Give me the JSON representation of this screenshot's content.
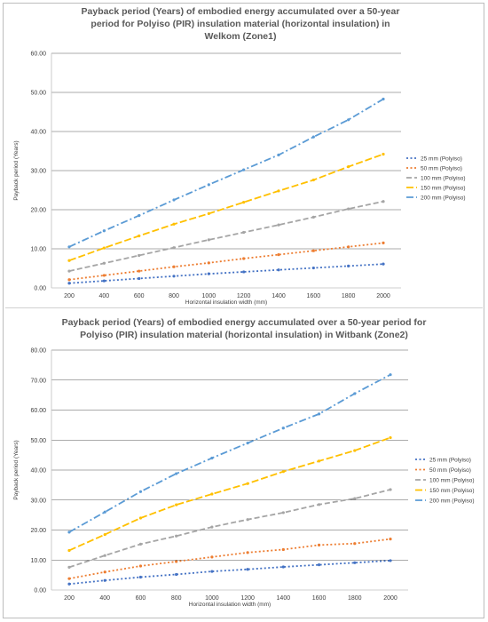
{
  "chart_data": [
    {
      "type": "line",
      "title_lines": [
        "Payback period (Years) of embodied energy accumulated over a 50-year",
        "period for Polyiso (PIR) insulation material (horizontal insulation) in",
        "Welkom (Zone1)"
      ],
      "xlabel": "Horizontal insulation width (mm)",
      "ylabel": "Payback period (Years)",
      "x": [
        200,
        400,
        600,
        800,
        1000,
        1200,
        1400,
        1600,
        1800,
        2000
      ],
      "y_ticks": [
        "0.00",
        "10.00",
        "20.00",
        "30.00",
        "40.00",
        "50.00",
        "60.00"
      ],
      "ylim": [
        0,
        60
      ],
      "gridlines": "horizontal",
      "legend_position": "right",
      "series": [
        {
          "name": "25 mm (Polyiso)",
          "color": "#4472C4",
          "values": [
            1.2,
            1.8,
            2.4,
            3.0,
            3.6,
            4.1,
            4.6,
            5.1,
            5.6,
            6.1
          ]
        },
        {
          "name": "50 mm (Polyiso)",
          "color": "#ED7D31",
          "values": [
            2.1,
            3.2,
            4.3,
            5.4,
            6.4,
            7.5,
            8.5,
            9.5,
            10.5,
            11.5
          ]
        },
        {
          "name": "100 mm (Polyiso)",
          "color": "#A5A5A5",
          "values": [
            4.3,
            6.3,
            8.3,
            10.3,
            12.3,
            14.2,
            16.1,
            18.1,
            20.2,
            22.1
          ]
        },
        {
          "name": "150 mm (Polyiso)",
          "color": "#FFC000",
          "values": [
            7.0,
            10.2,
            13.3,
            16.3,
            19.0,
            21.9,
            24.8,
            27.6,
            31.0,
            34.2
          ]
        },
        {
          "name": "200 mm (Polyiso)",
          "color": "#5B9BD5",
          "values": [
            10.5,
            14.6,
            18.5,
            22.5,
            26.4,
            30.2,
            34.0,
            38.6,
            43.0,
            48.3
          ]
        }
      ]
    },
    {
      "type": "line",
      "title_lines": [
        "Payback period (Years) of embodied energy accumulated over a 50-year period for",
        "Polyiso (PIR) insulation material (horizontal insulation) in Witbank (Zone2)"
      ],
      "xlabel": "Horizontal insulation width (mm)",
      "ylabel": "Payback period (Years)",
      "x": [
        200,
        400,
        600,
        800,
        1000,
        1200,
        1400,
        1600,
        1800,
        2000
      ],
      "y_ticks": [
        "0.00",
        "10.00",
        "20.00",
        "30.00",
        "40.00",
        "50.00",
        "60.00",
        "70.00",
        "80.00"
      ],
      "ylim": [
        0,
        80
      ],
      "gridlines": "horizontal",
      "legend_position": "right",
      "series": [
        {
          "name": "25 mm (Polyiso)",
          "color": "#4472C4",
          "values": [
            2.0,
            3.2,
            4.3,
            5.2,
            6.2,
            6.9,
            7.7,
            8.4,
            9.1,
            9.8
          ]
        },
        {
          "name": "50 mm (Polyiso)",
          "color": "#ED7D31",
          "values": [
            3.8,
            6.0,
            8.0,
            9.5,
            11.0,
            12.5,
            13.5,
            15.0,
            15.5,
            17.0
          ]
        },
        {
          "name": "100 mm (Polyiso)",
          "color": "#A5A5A5",
          "values": [
            7.6,
            11.5,
            15.3,
            18.0,
            21.0,
            23.5,
            25.8,
            28.5,
            30.5,
            33.5
          ]
        },
        {
          "name": "150 mm (Polyiso)",
          "color": "#FFC000",
          "values": [
            13.2,
            18.5,
            24.0,
            28.4,
            32.0,
            35.5,
            39.5,
            43.0,
            46.5,
            50.8
          ]
        },
        {
          "name": "200 mm (Polyiso)",
          "color": "#5B9BD5",
          "values": [
            19.3,
            26.0,
            32.8,
            38.8,
            44.0,
            49.0,
            54.0,
            58.7,
            65.5,
            71.8
          ]
        }
      ]
    }
  ]
}
